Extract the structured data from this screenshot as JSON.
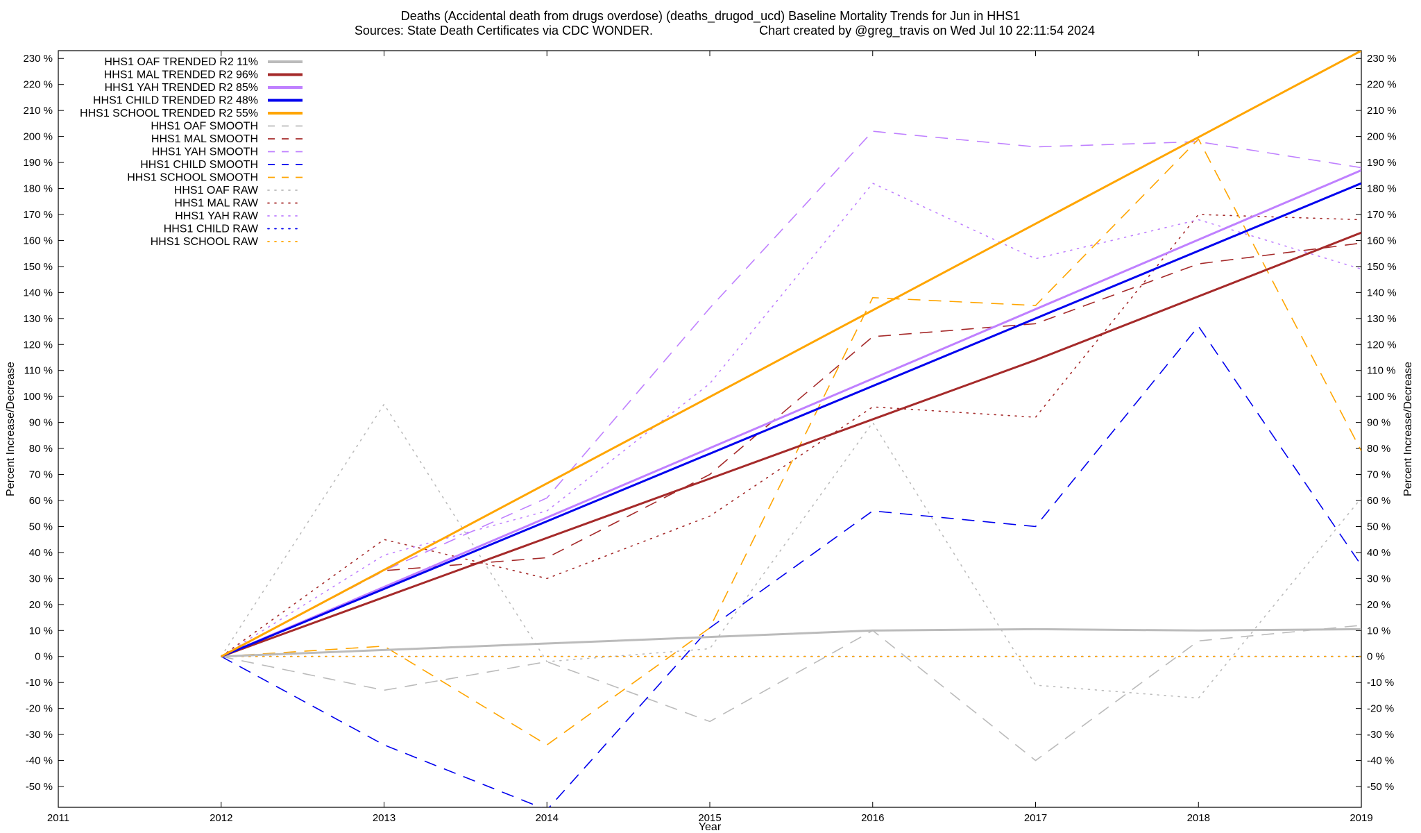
{
  "chart_data": {
    "type": "line",
    "title": "Deaths (Accidental death from drugs overdose) (deaths_drugod_ucd)  Baseline Mortality Trends for Jun in HHS1",
    "subtitle_left": "Sources: State Death Certificates via CDC WONDER.",
    "subtitle_right": "Chart created by @greg_travis on Wed Jul 10 22:11:54 2024",
    "xlabel": "Year",
    "ylabel_left": "Percent Increase/Decrease",
    "ylabel_right": "Percent Increase/Decrease",
    "xlim": [
      2011,
      2019
    ],
    "ylim": [
      -58,
      233
    ],
    "xticks": [
      2011,
      2012,
      2013,
      2014,
      2015,
      2016,
      2017,
      2018,
      2019
    ],
    "yticks": [
      -50,
      -40,
      -30,
      -20,
      -10,
      0,
      10,
      20,
      30,
      40,
      50,
      60,
      70,
      80,
      90,
      100,
      110,
      120,
      130,
      140,
      150,
      160,
      170,
      180,
      190,
      200,
      210,
      220,
      230
    ],
    "ytick_suffix": " %",
    "grid": false,
    "legend_position": "top-left",
    "series": [
      {
        "name": "HHS1 OAF TRENDED R2  11%",
        "style": "solid",
        "color": "#bbbbbb",
        "width": 3,
        "x": [
          2012,
          2016,
          2017,
          2018,
          2019
        ],
        "values": [
          0,
          10,
          10.5,
          10,
          10.5
        ]
      },
      {
        "name": "HHS1 MAL TRENDED R2  96%",
        "style": "solid",
        "color": "#a52a2a",
        "width": 3,
        "x": [
          2012,
          2017,
          2019
        ],
        "values": [
          0,
          114,
          163
        ]
      },
      {
        "name": "HHS1 YAH TRENDED R2  85%",
        "style": "solid",
        "color": "#bf80ff",
        "width": 3,
        "x": [
          2012,
          2019
        ],
        "values": [
          0,
          187
        ]
      },
      {
        "name": "HHS1 CHILD TRENDED R2  48%",
        "style": "solid",
        "color": "#0000ee",
        "width": 3,
        "x": [
          2012,
          2019
        ],
        "values": [
          0,
          182
        ]
      },
      {
        "name": "HHS1 SCHOOL TRENDED R2  55%",
        "style": "solid",
        "color": "#ffa500",
        "width": 3,
        "x": [
          2012,
          2019
        ],
        "values": [
          0,
          233
        ]
      },
      {
        "name": "HHS1 OAF SMOOTH",
        "style": "dashed",
        "color": "#bbbbbb",
        "width": 1.6,
        "x": [
          2012,
          2013,
          2014,
          2015,
          2016,
          2017,
          2018,
          2019
        ],
        "values": [
          0,
          -13,
          -2,
          -25,
          10,
          -40,
          6,
          12
        ]
      },
      {
        "name": "HHS1 MAL SMOOTH",
        "style": "dashed",
        "color": "#a52a2a",
        "width": 1.6,
        "x": [
          2012,
          2013,
          2014,
          2015,
          2016,
          2017,
          2018,
          2019
        ],
        "values": [
          0,
          33,
          38,
          70,
          123,
          128,
          151,
          159
        ]
      },
      {
        "name": "HHS1 YAH SMOOTH",
        "style": "dashed",
        "color": "#bf80ff",
        "width": 1.6,
        "x": [
          2012,
          2013,
          2014,
          2015,
          2016,
          2017,
          2018,
          2019
        ],
        "values": [
          0,
          33,
          61,
          134,
          202,
          196,
          198,
          188
        ]
      },
      {
        "name": "HHS1 CHILD SMOOTH",
        "style": "dashed",
        "color": "#0000ee",
        "width": 1.6,
        "x": [
          2012,
          2013,
          2014,
          2015,
          2016,
          2017,
          2018,
          2019
        ],
        "values": [
          0,
          -34,
          -59,
          11,
          56,
          50,
          127,
          35
        ]
      },
      {
        "name": "HHS1 SCHOOL SMOOTH",
        "style": "dashed",
        "color": "#ffa500",
        "width": 1.6,
        "x": [
          2012,
          2013,
          2014,
          2015,
          2016,
          2017,
          2018,
          2019
        ],
        "values": [
          0,
          4,
          -34,
          11,
          138,
          135,
          199,
          79
        ]
      },
      {
        "name": "HHS1 OAF RAW",
        "style": "dotted",
        "color": "#bbbbbb",
        "width": 1.6,
        "x": [
          2012,
          2013,
          2014,
          2015,
          2016,
          2017,
          2018,
          2019
        ],
        "values": [
          0,
          97,
          -2,
          3,
          90,
          -11,
          -16,
          61
        ]
      },
      {
        "name": "HHS1 MAL RAW",
        "style": "dotted",
        "color": "#a52a2a",
        "width": 1.6,
        "x": [
          2012,
          2013,
          2014,
          2015,
          2016,
          2017,
          2018,
          2019
        ],
        "values": [
          0,
          45,
          30,
          54,
          96,
          92,
          170,
          168
        ]
      },
      {
        "name": "HHS1 YAH RAW",
        "style": "dotted",
        "color": "#bf80ff",
        "width": 1.6,
        "x": [
          2012,
          2013,
          2014,
          2015,
          2016,
          2017,
          2018,
          2019
        ],
        "values": [
          0,
          39,
          56,
          105,
          182,
          153,
          168,
          149
        ]
      },
      {
        "name": "HHS1 CHILD RAW",
        "style": "dotted",
        "color": "#0000ee",
        "width": 1.6,
        "x": [
          2012,
          2013,
          2014,
          2015,
          2016,
          2017,
          2018,
          2019
        ],
        "values": [
          0,
          0,
          0,
          0,
          0,
          0,
          0,
          0
        ]
      },
      {
        "name": "HHS1 SCHOOL RAW",
        "style": "dotted",
        "color": "#ffa500",
        "width": 1.6,
        "x": [
          2012,
          2013,
          2014,
          2015,
          2016,
          2017,
          2018,
          2019
        ],
        "values": [
          0,
          0,
          0,
          0,
          0,
          0,
          0,
          0
        ]
      }
    ]
  }
}
